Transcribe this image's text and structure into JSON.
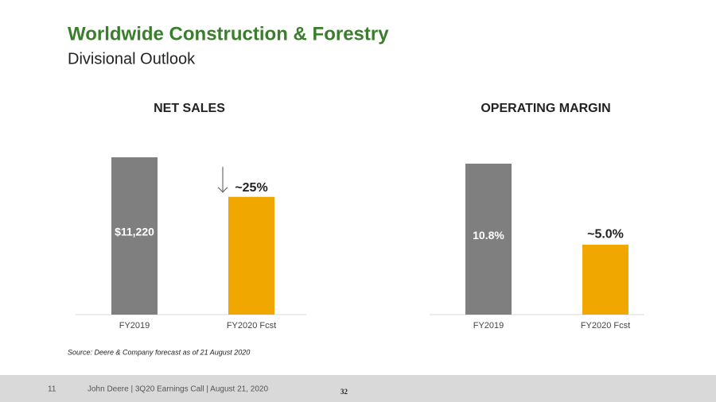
{
  "header": {
    "title": "Worldwide Construction & Forestry",
    "subtitle": "Divisional Outlook"
  },
  "chart_data": [
    {
      "type": "bar",
      "title": "NET SALES",
      "categories": [
        "FY2019",
        "FY2020 Fcst"
      ],
      "values": [
        11220,
        8400
      ],
      "value_labels": [
        "$11,220",
        null
      ],
      "annotation": "~25%",
      "colors": [
        "#7f7f7f",
        "#f0a800"
      ]
    },
    {
      "type": "bar",
      "title": "OPERATING MARGIN",
      "categories": [
        "FY2019",
        "FY2020 Fcst"
      ],
      "values": [
        10.8,
        5.0
      ],
      "value_labels": [
        "10.8%",
        "~5.0%"
      ],
      "colors": [
        "#7f7f7f",
        "#f0a800"
      ]
    }
  ],
  "source": "Source: Deere & Company forecast as of 21 August 2020",
  "footer": {
    "page": "11",
    "text": "John Deere | 3Q20 Earnings Call | August 21, 2020",
    "number": "32"
  }
}
